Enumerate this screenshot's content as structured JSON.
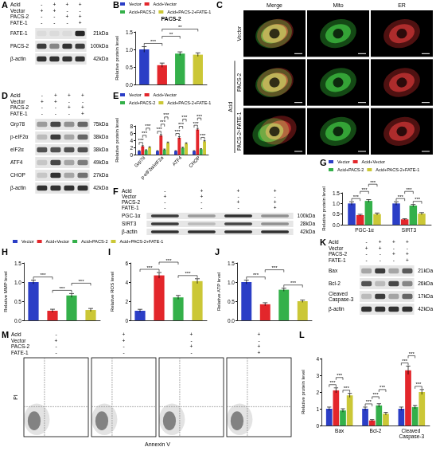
{
  "blots": [
    {
      "panel": "A",
      "conditions": [
        {
          "label": "Acid",
          "signs": [
            "-",
            "+",
            "+",
            "+"
          ]
        },
        {
          "label": "Vector",
          "signs": [
            "+",
            "+",
            "-",
            "-"
          ]
        },
        {
          "label": "PACS-2",
          "signs": [
            "-",
            "-",
            "+",
            "+"
          ]
        },
        {
          "label": "FATE-1",
          "signs": [
            "-",
            "-",
            "-",
            "+"
          ]
        }
      ],
      "rows": [
        {
          "label": "FATE-1",
          "kda": "21kDa",
          "intensity": [
            0.05,
            0.05,
            0.05,
            0.9
          ]
        },
        {
          "label": "PACS-2",
          "kda": "100kDa",
          "intensity": [
            0.8,
            0.45,
            0.85,
            0.8
          ]
        },
        {
          "label": "β-actin",
          "kda": "42kDa",
          "intensity": [
            0.85,
            0.85,
            0.85,
            0.85
          ]
        }
      ]
    },
    {
      "panel": "D",
      "conditions": [
        {
          "label": "Acid",
          "signs": [
            "-",
            "+",
            "+",
            "+"
          ]
        },
        {
          "label": "Vector",
          "signs": [
            "+",
            "+",
            "-",
            "-"
          ]
        },
        {
          "label": "PACS-2",
          "signs": [
            "-",
            "-",
            "+",
            "+"
          ]
        },
        {
          "label": "FATE-1",
          "signs": [
            "-",
            "-",
            "-",
            "+"
          ]
        }
      ],
      "rows": [
        {
          "label": "Grp78",
          "kda": "75kDa",
          "intensity": [
            0.35,
            0.75,
            0.4,
            0.6
          ]
        },
        {
          "label": "p-eIF2α",
          "kda": "38kDa",
          "intensity": [
            0.2,
            0.8,
            0.3,
            0.6
          ]
        },
        {
          "label": "eIF2α",
          "kda": "38kDa",
          "intensity": [
            0.7,
            0.7,
            0.7,
            0.7
          ]
        },
        {
          "label": "ATF4",
          "kda": "49kDa",
          "intensity": [
            0.15,
            0.75,
            0.3,
            0.5
          ]
        },
        {
          "label": "CHOP",
          "kda": "27kDa",
          "intensity": [
            0.15,
            0.85,
            0.3,
            0.55
          ]
        },
        {
          "label": "β-actin",
          "kda": "42kDa",
          "intensity": [
            0.85,
            0.85,
            0.85,
            0.85
          ]
        }
      ]
    },
    {
      "panel": "F",
      "conditions": [
        {
          "label": "Acid",
          "signs": [
            "-",
            "+",
            "+",
            "+"
          ]
        },
        {
          "label": "Vector",
          "signs": [
            "+",
            "+",
            "-",
            "-"
          ]
        },
        {
          "label": "PACS-2",
          "signs": [
            "-",
            "-",
            "+",
            "+"
          ]
        },
        {
          "label": "FATE-1",
          "signs": [
            "-",
            "-",
            "-",
            "+"
          ]
        }
      ],
      "rows": [
        {
          "label": "PGC-1α",
          "kda": "100kDa",
          "intensity": [
            0.8,
            0.35,
            0.85,
            0.4
          ]
        },
        {
          "label": "SIRT3",
          "kda": "28kDa",
          "intensity": [
            0.8,
            0.2,
            0.75,
            0.4
          ]
        },
        {
          "label": "β-actin",
          "kda": "42kDa",
          "intensity": [
            0.85,
            0.85,
            0.85,
            0.85
          ]
        }
      ]
    },
    {
      "panel": "K",
      "conditions": [
        {
          "label": "Acid",
          "signs": [
            "-",
            "+",
            "+",
            "+"
          ]
        },
        {
          "label": "Vector",
          "signs": [
            "+",
            "+",
            "-",
            "-"
          ]
        },
        {
          "label": "PACS-2",
          "signs": [
            "-",
            "-",
            "+",
            "+"
          ]
        },
        {
          "label": "FATE-1",
          "signs": [
            "-",
            "-",
            "-",
            "+"
          ]
        }
      ],
      "rows": [
        {
          "label": "Bax",
          "kda": "21kDa",
          "intensity": [
            0.3,
            0.8,
            0.3,
            0.65
          ]
        },
        {
          "label": "Bcl-2",
          "kda": "26kDa",
          "intensity": [
            0.7,
            0.2,
            0.75,
            0.45
          ]
        },
        {
          "label": "Cleaved Caspase-3",
          "kda": "17kDa",
          "intensity": [
            0.2,
            0.8,
            0.3,
            0.6
          ]
        },
        {
          "label": "β-actin",
          "kda": "42kDa",
          "intensity": [
            0.85,
            0.85,
            0.85,
            0.85
          ]
        }
      ]
    }
  ],
  "images": {
    "panel": "C",
    "columns": [
      "Merge",
      "Mito",
      "ER"
    ],
    "rows": [
      {
        "label": "Vector"
      },
      {
        "label": "PACS-2",
        "group": "Acid"
      },
      {
        "label": "PACS-2+FATE-1",
        "group": "Acid"
      }
    ]
  },
  "flow": {
    "panel": "M",
    "x_label": "Annexin V",
    "y_label": "PI",
    "conditions": [
      {
        "label": "Acid",
        "signs": [
          "-",
          "+",
          "+",
          "+"
        ]
      },
      {
        "label": "Vector",
        "signs": [
          "+",
          "+",
          "-",
          "-"
        ]
      },
      {
        "label": "PACS-2",
        "signs": [
          "-",
          "-",
          "+",
          "+"
        ]
      },
      {
        "label": "FATE-1",
        "signs": [
          "-",
          "-",
          "-",
          "+"
        ]
      }
    ]
  },
  "chart_data": [
    {
      "panel": "B",
      "type": "bar",
      "title": "PACS-2",
      "y_label": "Relative protein level",
      "categories": [
        "Vector",
        "Acid+Vector",
        "Acid+PACS-2",
        "Acid+PACS-2+FATE-1"
      ],
      "values": [
        1.0,
        0.55,
        0.88,
        0.85
      ],
      "errors": [
        0.08,
        0.06,
        0.05,
        0.05
      ],
      "colors": [
        "#2b3ec6",
        "#e3262b",
        "#34b04a",
        "#cbc736"
      ],
      "ylim": [
        0,
        1.5
      ],
      "yticks": [
        {
          "value": 0,
          "label": "0.0"
        },
        0.5,
        {
          "value": 1,
          "label": "1.0"
        },
        1.5
      ],
      "legend": "top",
      "tick_labels": "y",
      "significance": [
        {
          "from": 0,
          "to": 1,
          "label": "***"
        },
        {
          "from": 1,
          "to": 2,
          "label": "**"
        },
        {
          "from": 1,
          "to": 3,
          "label": "**"
        }
      ]
    },
    {
      "panel": "E",
      "type": "bar",
      "y_label": "Relative protein level",
      "categories": [
        "Grp78",
        "p-eIF2α/eIF2α",
        "ATF4",
        "CHOP"
      ],
      "series": [
        {
          "name": "Vector",
          "color": "#2b3ec6",
          "values": [
            1,
            1,
            1,
            1
          ],
          "errors": [
            0.1,
            0.1,
            0.1,
            0.1
          ]
        },
        {
          "name": "Acid+Vector",
          "color": "#e3262b",
          "values": [
            2.3,
            5.3,
            4.7,
            7.0
          ],
          "errors": [
            0.2,
            0.3,
            0.3,
            0.3
          ]
        },
        {
          "name": "Acid+PACS-2",
          "color": "#34b04a",
          "values": [
            1.2,
            1.4,
            1.9,
            1.5
          ],
          "errors": [
            0.15,
            0.15,
            0.15,
            0.15
          ]
        },
        {
          "name": "Acid+PACS-2+FATE-1",
          "color": "#cbc736",
          "values": [
            2.0,
            3.3,
            3.1,
            3.7
          ],
          "errors": [
            0.2,
            0.2,
            0.2,
            0.2
          ]
        }
      ],
      "ylim": [
        0,
        8
      ],
      "yticks": [
        0,
        2,
        4,
        6,
        8
      ],
      "legend": "top",
      "significance": [
        {
          "category": 0,
          "from": 0,
          "to": 1,
          "label": "***"
        },
        {
          "category": 0,
          "from": 1,
          "to": 2,
          "label": "***"
        },
        {
          "category": 0,
          "from": 2,
          "to": 3,
          "label": "***"
        },
        {
          "category": 1,
          "from": 0,
          "to": 1,
          "label": "***"
        },
        {
          "category": 1,
          "from": 1,
          "to": 2,
          "label": "***"
        },
        {
          "category": 1,
          "from": 2,
          "to": 3,
          "label": "***"
        },
        {
          "category": 2,
          "from": 0,
          "to": 1,
          "label": "***"
        },
        {
          "category": 2,
          "from": 1,
          "to": 2,
          "label": "***"
        },
        {
          "category": 2,
          "from": 2,
          "to": 3,
          "label": "***"
        },
        {
          "category": 3,
          "from": 0,
          "to": 1,
          "label": "***"
        },
        {
          "category": 3,
          "from": 1,
          "to": 2,
          "label": "***"
        },
        {
          "category": 3,
          "from": 2,
          "to": 3,
          "label": "***"
        }
      ]
    },
    {
      "panel": "G",
      "type": "bar",
      "y_label": "Relative protein level",
      "categories": [
        "PGC-1α",
        "SIRT3"
      ],
      "series": [
        {
          "name": "Vector",
          "color": "#2b3ec6",
          "values": [
            1,
            1
          ],
          "errors": [
            0.08,
            0.08
          ]
        },
        {
          "name": "Acid+Vector",
          "color": "#e3262b",
          "values": [
            0.45,
            0.25
          ],
          "errors": [
            0.04,
            0.03
          ]
        },
        {
          "name": "Acid+PACS-2",
          "color": "#34b04a",
          "values": [
            1.12,
            0.9
          ],
          "errors": [
            0.06,
            0.05
          ]
        },
        {
          "name": "Acid+PACS-2+FATE-1",
          "color": "#cbc736",
          "values": [
            0.5,
            0.52
          ],
          "errors": [
            0.05,
            0.05
          ]
        }
      ],
      "ylim": [
        0,
        1.5
      ],
      "yticks": [
        {
          "value": 0,
          "label": "0.0"
        },
        0.5,
        {
          "value": 1,
          "label": "1.0"
        },
        1.5
      ],
      "legend": "top",
      "significance": [
        {
          "category": 0,
          "from": 0,
          "to": 1,
          "label": "***"
        },
        {
          "category": 0,
          "from": 1,
          "to": 2,
          "label": "***"
        },
        {
          "category": 0,
          "from": 2,
          "to": 3,
          "label": "***"
        },
        {
          "category": 1,
          "from": 0,
          "to": 1,
          "label": "***"
        },
        {
          "category": 1,
          "from": 1,
          "to": 2,
          "label": "***"
        },
        {
          "category": 1,
          "from": 2,
          "to": 3,
          "label": "***"
        }
      ]
    },
    {
      "panel": "H",
      "type": "bar",
      "y_label": "Relative MMP level",
      "categories": [
        "Vector",
        "Acid+Vector",
        "Acid+PACS-2",
        "Acid+PACS-2+FATE-1"
      ],
      "values": [
        1.0,
        0.25,
        0.65,
        0.27
      ],
      "errors": [
        0.05,
        0.04,
        0.05,
        0.04
      ],
      "colors": [
        "#2b3ec6",
        "#e3262b",
        "#34b04a",
        "#cbc736"
      ],
      "ylim": [
        0,
        1.5
      ],
      "yticks": [
        {
          "value": 0,
          "label": "0.0"
        },
        0.5,
        {
          "value": 1,
          "label": "1.0"
        },
        1.5
      ],
      "legend": "top",
      "tick_labels": "y",
      "significance": [
        {
          "from": 0,
          "to": 1,
          "label": "***"
        },
        {
          "from": 1,
          "to": 2,
          "label": "***"
        },
        {
          "from": 2,
          "to": 3,
          "label": "***"
        }
      ]
    },
    {
      "panel": "I",
      "type": "bar",
      "y_label": "Relative ROS level",
      "categories": [
        "Vector",
        "Acid+Vector",
        "Acid+PACS-2",
        "Acid+PACS-2+FATE-1"
      ],
      "values": [
        1.0,
        4.7,
        2.4,
        4.1
      ],
      "errors": [
        0.15,
        0.3,
        0.2,
        0.25
      ],
      "colors": [
        "#2b3ec6",
        "#e3262b",
        "#34b04a",
        "#cbc736"
      ],
      "ylim": [
        0,
        6
      ],
      "yticks": [
        0,
        2,
        4,
        6
      ],
      "tick_labels": "y",
      "significance": [
        {
          "from": 0,
          "to": 1,
          "label": "***"
        },
        {
          "from": 1,
          "to": 2,
          "label": "***"
        },
        {
          "from": 2,
          "to": 3,
          "label": "***"
        }
      ]
    },
    {
      "panel": "J",
      "type": "bar",
      "y_label": "Relative ATP level",
      "categories": [
        "Vector",
        "Acid+Vector",
        "Acid+PACS-2",
        "Acid+PACS-2+FATE-1"
      ],
      "values": [
        1.0,
        0.42,
        0.8,
        0.5
      ],
      "errors": [
        0.05,
        0.04,
        0.04,
        0.03
      ],
      "colors": [
        "#2b3ec6",
        "#e3262b",
        "#34b04a",
        "#cbc736"
      ],
      "ylim": [
        0,
        1.5
      ],
      "yticks": [
        {
          "value": 0,
          "label": "0.0"
        },
        0.5,
        {
          "value": 1,
          "label": "1.0"
        },
        1.5
      ],
      "tick_labels": "y",
      "significance": [
        {
          "from": 0,
          "to": 1,
          "label": "***"
        },
        {
          "from": 1,
          "to": 2,
          "label": "***"
        },
        {
          "from": 2,
          "to": 3,
          "label": "***"
        }
      ]
    },
    {
      "panel": "L",
      "type": "bar",
      "y_label": "Relative protein level",
      "categories": [
        "Bax",
        "Bcl-2",
        "Cleaved Caspase-3"
      ],
      "series": [
        {
          "name": "Vector",
          "color": "#2b3ec6",
          "values": [
            1,
            1,
            1
          ],
          "errors": [
            0.1,
            0.1,
            0.1
          ]
        },
        {
          "name": "Acid+Vector",
          "color": "#e3262b",
          "values": [
            2.1,
            0.3,
            3.3
          ],
          "errors": [
            0.15,
            0.05,
            0.25
          ]
        },
        {
          "name": "Acid+PACS-2",
          "color": "#34b04a",
          "values": [
            0.9,
            1.2,
            1.1
          ],
          "errors": [
            0.1,
            0.1,
            0.1
          ]
        },
        {
          "name": "Acid+PACS-2+FATE-1",
          "color": "#cbc736",
          "values": [
            1.8,
            0.7,
            2.0
          ],
          "errors": [
            0.12,
            0.08,
            0.15
          ]
        }
      ],
      "ylim": [
        0,
        4
      ],
      "yticks": [
        0,
        1,
        2,
        3,
        4
      ],
      "significance": [
        {
          "category": 0,
          "from": 0,
          "to": 1,
          "label": "***"
        },
        {
          "category": 0,
          "from": 1,
          "to": 2,
          "label": "***"
        },
        {
          "category": 0,
          "from": 2,
          "to": 3,
          "label": "***"
        },
        {
          "category": 1,
          "from": 0,
          "to": 1,
          "label": "***"
        },
        {
          "category": 1,
          "from": 1,
          "to": 2,
          "label": "***"
        },
        {
          "category": 1,
          "from": 2,
          "to": 3,
          "label": "***"
        },
        {
          "category": 2,
          "from": 0,
          "to": 1,
          "label": "***"
        },
        {
          "category": 2,
          "from": 1,
          "to": 2,
          "label": "***"
        },
        {
          "category": 2,
          "from": 2,
          "to": 3,
          "label": "***"
        }
      ]
    }
  ]
}
